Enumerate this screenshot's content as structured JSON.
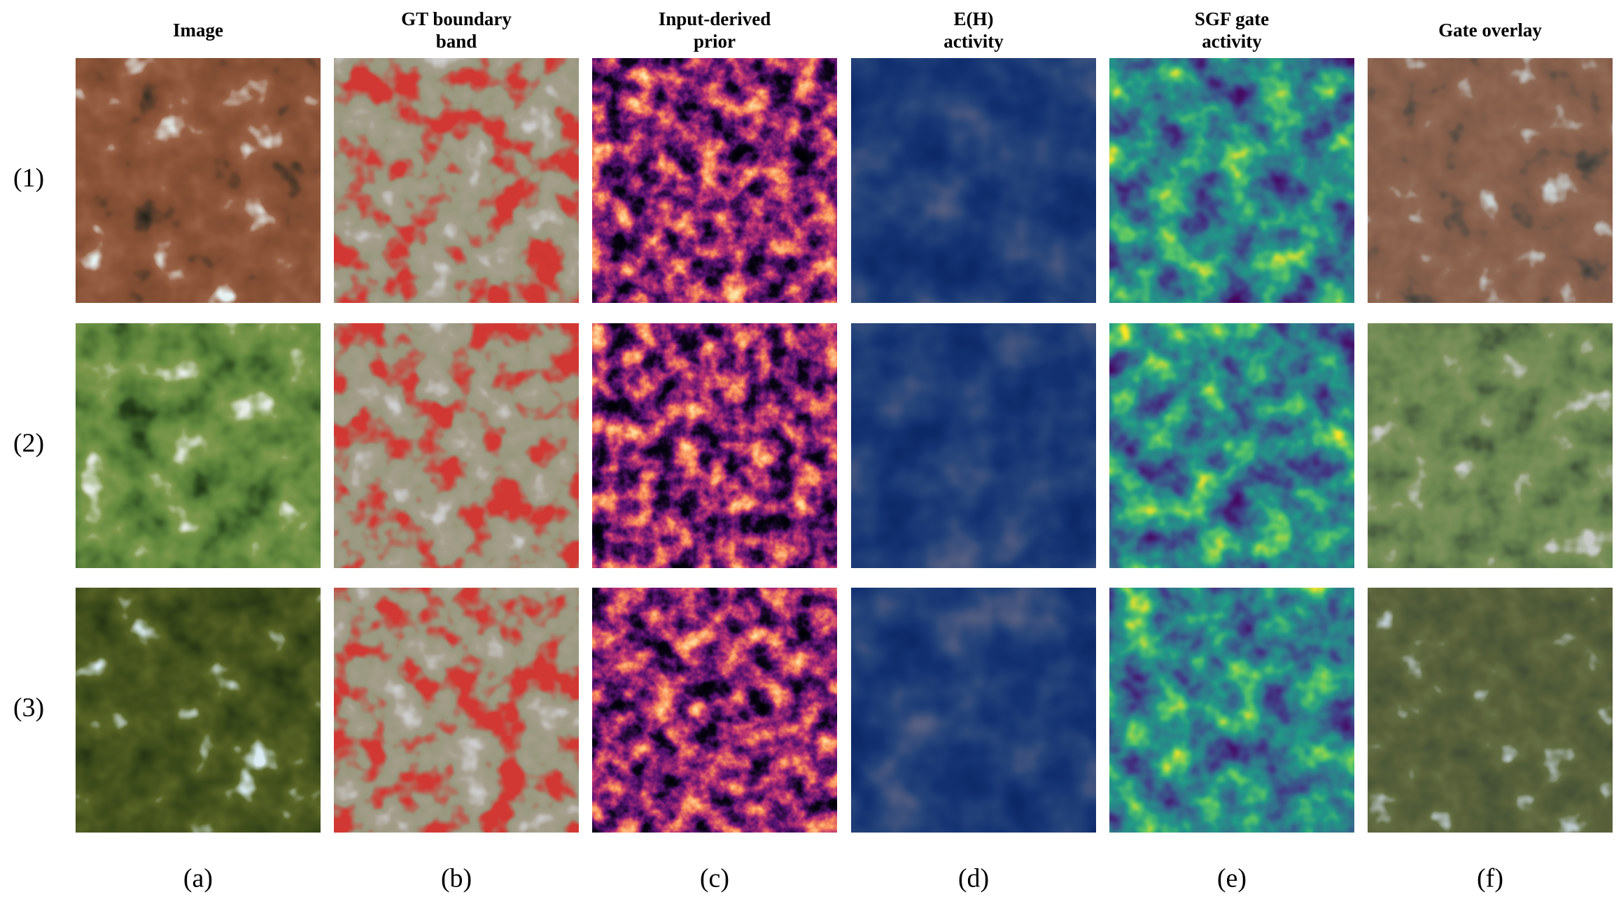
{
  "columns": [
    {
      "header": [
        "Image"
      ],
      "letter": "(a)"
    },
    {
      "header": [
        "GT boundary",
        "band"
      ],
      "letter": "(b)"
    },
    {
      "header": [
        "Input-derived",
        "prior"
      ],
      "letter": "(c)"
    },
    {
      "header": [
        "E(H)",
        "activity"
      ],
      "letter": "(d)"
    },
    {
      "header": [
        "SGF gate",
        "activity"
      ],
      "letter": "(e)"
    },
    {
      "header": [
        "Gate overlay"
      ],
      "letter": "(f)"
    }
  ],
  "rows": [
    "(1)",
    "(2)",
    "(3)"
  ]
}
